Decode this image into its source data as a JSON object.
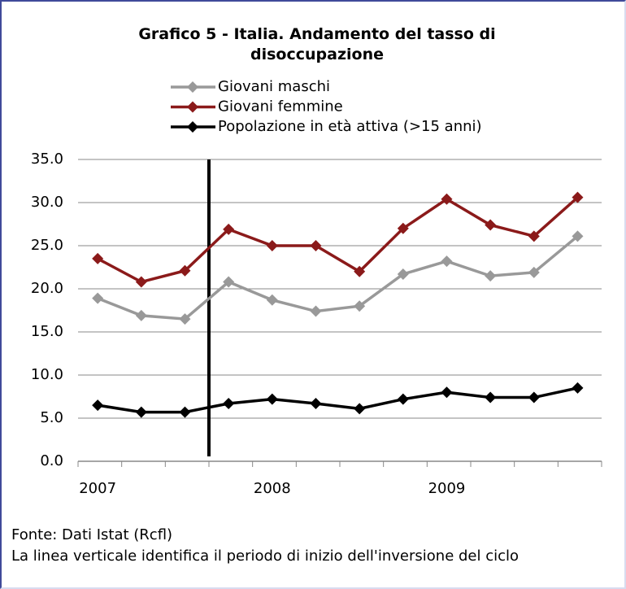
{
  "chart_data": {
    "type": "line",
    "title": "Grafico 5 - Italia. Andamento del tasso di disoccupazione",
    "categories": [
      "2007",
      null,
      null,
      null,
      "2008",
      null,
      null,
      null,
      "2009",
      null,
      null,
      null
    ],
    "series": [
      {
        "name": "Giovani maschi",
        "color": "#999999",
        "values": [
          18.9,
          16.9,
          16.5,
          20.8,
          18.7,
          17.4,
          18.0,
          21.7,
          23.2,
          21.5,
          21.9,
          26.1
        ]
      },
      {
        "name": "Giovani femmine",
        "color": "#8b1a1a",
        "values": [
          23.5,
          20.8,
          22.1,
          26.9,
          25.0,
          25.0,
          22.0,
          27.0,
          30.4,
          27.4,
          26.1,
          30.6
        ]
      },
      {
        "name": "Popolazione in età attiva (>15 anni)",
        "color": "#000000",
        "values": [
          6.5,
          5.7,
          5.7,
          6.7,
          7.2,
          6.7,
          6.1,
          7.2,
          8.0,
          7.4,
          7.4,
          8.5
        ]
      }
    ],
    "ylim": [
      0,
      35
    ],
    "yticks": [
      {
        "value": 0,
        "label": "0.0"
      },
      {
        "value": 5,
        "label": "5.0"
      },
      {
        "value": 10,
        "label": "10.0"
      },
      {
        "value": 15,
        "label": "15.0"
      },
      {
        "value": 20,
        "label": "20.0"
      },
      {
        "value": 25,
        "label": "25.0"
      },
      {
        "value": 30,
        "label": "30.0"
      },
      {
        "value": 35,
        "label": "35.0"
      }
    ],
    "grid": true,
    "source": "Fonte: Dati Istat (Rcfl)",
    "note": "La linea verticale identifica il periodo di inizio dell'inversione del ciclo"
  }
}
